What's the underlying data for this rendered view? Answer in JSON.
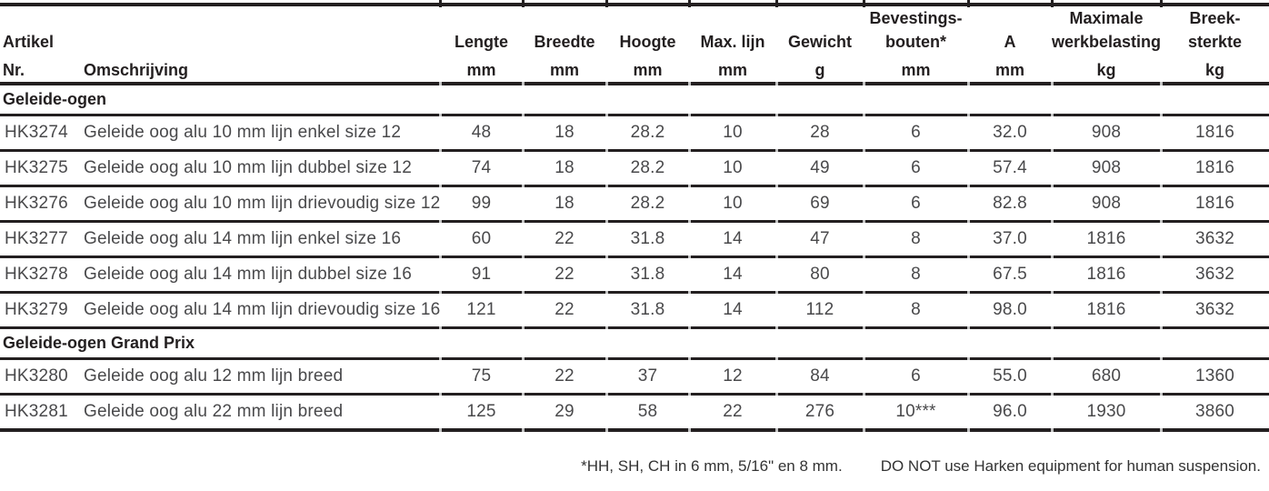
{
  "table": {
    "columns": [
      {
        "key": "artikel",
        "lines": [
          "Artikel"
        ],
        "unit": "Nr."
      },
      {
        "key": "omschrijving",
        "lines": [],
        "unit": "Omschrijving"
      },
      {
        "key": "lengte",
        "lines": [
          "Lengte"
        ],
        "unit": "mm"
      },
      {
        "key": "breedte",
        "lines": [
          "Breedte"
        ],
        "unit": "mm"
      },
      {
        "key": "hoogte",
        "lines": [
          "Hoogte"
        ],
        "unit": "mm"
      },
      {
        "key": "max-lijn",
        "lines": [
          "Max. lijn"
        ],
        "unit": "mm"
      },
      {
        "key": "gewicht",
        "lines": [
          "Gewicht"
        ],
        "unit": "g"
      },
      {
        "key": "bevestingsbouten",
        "lines": [
          "Bevestings-",
          "bouten*"
        ],
        "unit": "mm"
      },
      {
        "key": "a",
        "lines": [
          "A"
        ],
        "unit": "mm"
      },
      {
        "key": "maximale-werkbelasting",
        "lines": [
          "Maximale",
          "werkbelasting"
        ],
        "unit": "kg"
      },
      {
        "key": "breeksterkte",
        "lines": [
          "Breek-",
          "sterkte"
        ],
        "unit": "kg"
      }
    ],
    "sections": [
      {
        "title": "Geleide-ogen",
        "rows": [
          {
            "artikel": "HK3274",
            "omschrijving": "Geleide oog alu 10 mm lijn enkel size 12",
            "values": [
              "48",
              "18",
              "28.2",
              "10",
              "28",
              "6",
              "32.0",
              "908",
              "1816"
            ]
          },
          {
            "artikel": "HK3275",
            "omschrijving": "Geleide oog alu 10 mm lijn dubbel size 12",
            "values": [
              "74",
              "18",
              "28.2",
              "10",
              "49",
              "6",
              "57.4",
              "908",
              "1816"
            ]
          },
          {
            "artikel": "HK3276",
            "omschrijving": "Geleide oog alu 10 mm lijn drievoudig size 12",
            "values": [
              "99",
              "18",
              "28.2",
              "10",
              "69",
              "6",
              "82.8",
              "908",
              "1816"
            ]
          },
          {
            "artikel": "HK3277",
            "omschrijving": "Geleide oog alu 14 mm lijn enkel size 16",
            "values": [
              "60",
              "22",
              "31.8",
              "14",
              "47",
              "8",
              "37.0",
              "1816",
              "3632"
            ]
          },
          {
            "artikel": "HK3278",
            "omschrijving": "Geleide oog alu 14 mm lijn dubbel size 16",
            "values": [
              "91",
              "22",
              "31.8",
              "14",
              "80",
              "8",
              "67.5",
              "1816",
              "3632"
            ]
          },
          {
            "artikel": "HK3279",
            "omschrijving": "Geleide oog alu 14 mm lijn drievoudig size 16",
            "values": [
              "121",
              "22",
              "31.8",
              "14",
              "112",
              "8",
              "98.0",
              "1816",
              "3632"
            ]
          }
        ]
      },
      {
        "title": "Geleide-ogen Grand Prix",
        "rows": [
          {
            "artikel": "HK3280",
            "omschrijving": "Geleide oog alu 12 mm lijn breed",
            "values": [
              "75",
              "22",
              "37",
              "12",
              "84",
              "6",
              "55.0",
              "680",
              "1360"
            ]
          },
          {
            "artikel": "HK3281",
            "omschrijving": "Geleide oog alu 22 mm lijn breed",
            "values": [
              "125",
              "29",
              "58",
              "22",
              "276",
              "10***",
              "96.0",
              "1930",
              "3860"
            ]
          }
        ]
      }
    ]
  },
  "footer": {
    "footnote": "*HH, SH, CH in 6 mm, 5/16\" en 8 mm.",
    "warning": "DO NOT use Harken equipment for human suspension."
  },
  "colors": {
    "line": "#231f20",
    "heading_text": "#231f20",
    "data_text": "#49494b",
    "tick_light": "#c2c2c2",
    "background": "#ffffff"
  }
}
